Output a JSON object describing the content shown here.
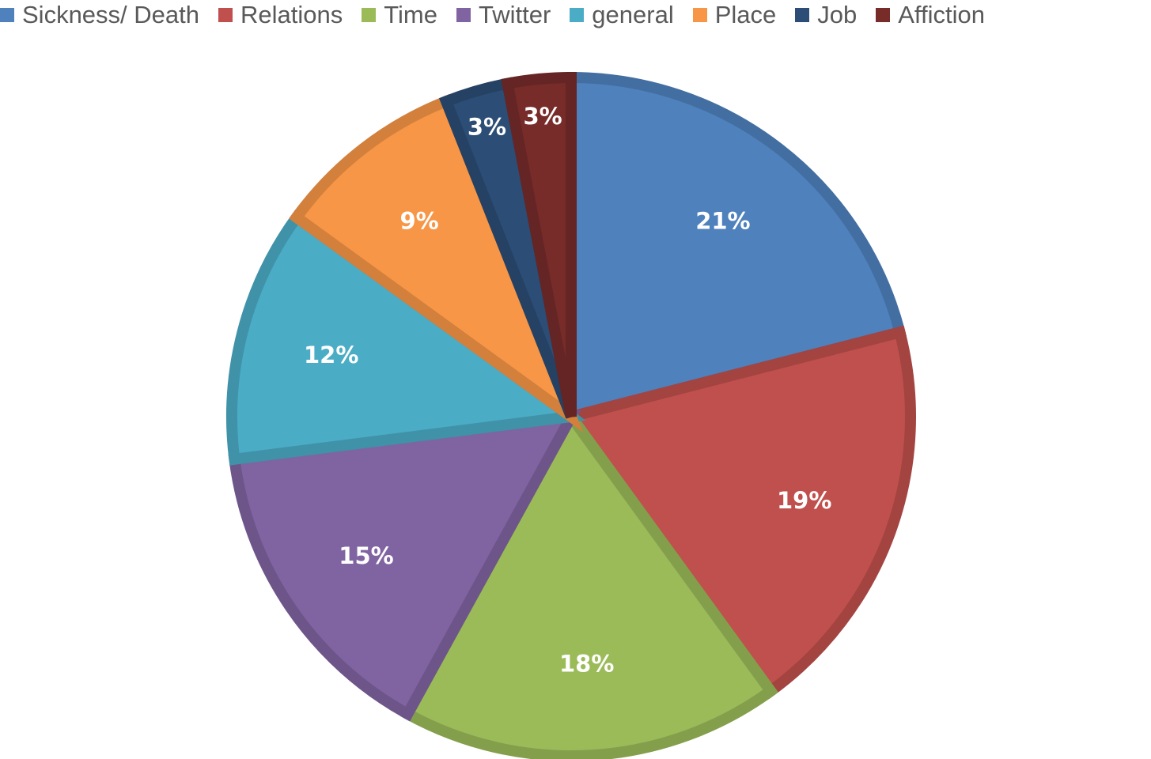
{
  "chart_data": {
    "type": "pie",
    "categories": [
      "Sickness/ Death",
      "Relations",
      "Time",
      "Twitter",
      "general",
      "Place",
      "Job",
      "Affiction"
    ],
    "values": [
      21,
      19,
      18,
      15,
      12,
      9,
      3,
      3
    ],
    "labels": [
      "21%",
      "19%",
      "18%",
      "15%",
      "12%",
      "9%",
      "3%",
      "3%"
    ],
    "colors": [
      "#4F81BD",
      "#C0504D",
      "#9BBB59",
      "#8064A2",
      "#4BACC6",
      "#F79646",
      "#2C4D75",
      "#772C2A"
    ],
    "unit": "%",
    "legend_position": "top",
    "start_angle_deg": 0,
    "direction": "clockwise"
  }
}
